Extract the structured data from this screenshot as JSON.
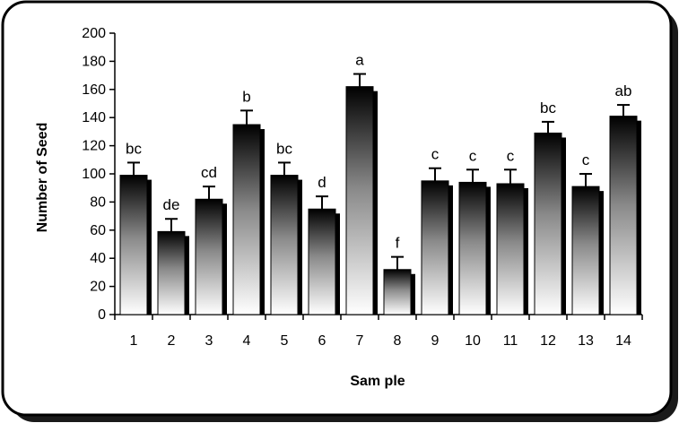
{
  "chart_data": {
    "type": "bar",
    "xlabel": "Sam ple",
    "ylabel": "Number of Seed",
    "ylim": [
      0,
      200
    ],
    "yticks": [
      0,
      20,
      40,
      60,
      80,
      100,
      120,
      140,
      160,
      180,
      200
    ],
    "categories": [
      "1",
      "2",
      "3",
      "4",
      "5",
      "6",
      "7",
      "8",
      "9",
      "10",
      "11",
      "12",
      "13",
      "14"
    ],
    "values": [
      99,
      59,
      82,
      135,
      99,
      75,
      162,
      32,
      95,
      94,
      93,
      129,
      91,
      141
    ],
    "error_upper": [
      9,
      9,
      9,
      10,
      9,
      9,
      9,
      9,
      9,
      9,
      10,
      8,
      9,
      8
    ],
    "letters": [
      "bc",
      "de",
      "cd",
      "b",
      "bc",
      "d",
      "a",
      "f",
      "c",
      "c",
      "c",
      "bc",
      "c",
      "ab"
    ],
    "grid": false,
    "legend": "none",
    "colors": {
      "bar_top": "#000000",
      "bar_bottom": "#ffffff",
      "bar_shadow": "#000000",
      "frame": "#000000",
      "page_shadow": "#1a1a1a"
    }
  }
}
